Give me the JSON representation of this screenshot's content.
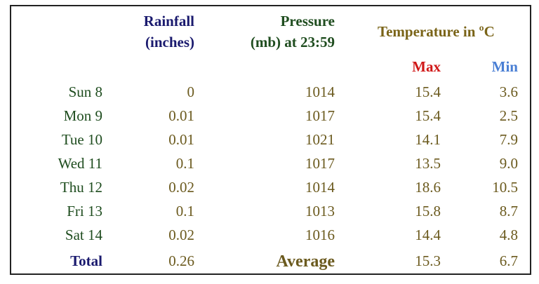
{
  "headers": {
    "rainfall_line1": "Rainfall",
    "rainfall_line2": "(inches)",
    "pressure_line1": "Pressure",
    "pressure_line2": "(mb) at 23:59",
    "temperature": "Temperature in ºC",
    "max": "Max",
    "min": "Min"
  },
  "rows": [
    {
      "day": "Sun 8",
      "rain": "0",
      "pressure": "1014",
      "max": "15.4",
      "min": "3.6"
    },
    {
      "day": "Mon 9",
      "rain": "0.01",
      "pressure": "1017",
      "max": "15.4",
      "min": "2.5"
    },
    {
      "day": "Tue 10",
      "rain": "0.01",
      "pressure": "1021",
      "max": "14.1",
      "min": "7.9"
    },
    {
      "day": "Wed 11",
      "rain": "0.1",
      "pressure": "1017",
      "max": "13.5",
      "min": "9.0"
    },
    {
      "day": "Thu 12",
      "rain": "0.02",
      "pressure": "1014",
      "max": "18.6",
      "min": "10.5"
    },
    {
      "day": "Fri 13",
      "rain": "0.1",
      "pressure": "1013",
      "max": "15.8",
      "min": "8.7"
    },
    {
      "day": "Sat 14",
      "rain": "0.02",
      "pressure": "1016",
      "max": "14.4",
      "min": "4.8"
    }
  ],
  "summary": {
    "total_label": "Total",
    "total_rain": "0.26",
    "average_label": "Average",
    "avg_max": "15.3",
    "avg_min": "6.7"
  },
  "colors": {
    "day": "#1f4d1f",
    "number": "#6b5a1e",
    "rain_header": "#1a1a6e",
    "max_header": "#d01818",
    "min_header": "#4a7fd4"
  }
}
